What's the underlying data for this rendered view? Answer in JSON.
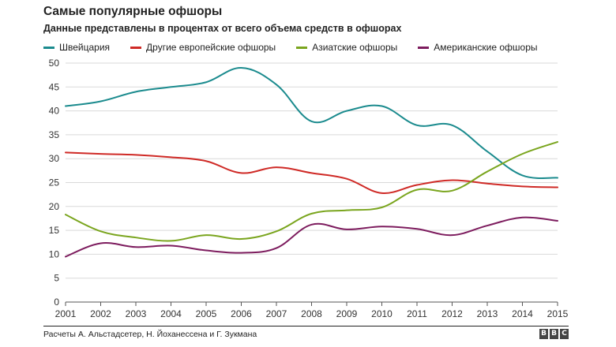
{
  "chart_data": {
    "type": "line",
    "title": "Самые популярные офшоры",
    "subtitle": "Данные представлены в процентах от всего объема средств в офшорах",
    "x": [
      2001,
      2002,
      2003,
      2004,
      2005,
      2006,
      2007,
      2008,
      2009,
      2010,
      2011,
      2012,
      2013,
      2014,
      2015
    ],
    "ylim": [
      0,
      50
    ],
    "yticks": [
      0,
      5,
      10,
      15,
      20,
      25,
      30,
      35,
      40,
      45,
      50
    ],
    "grid": "horizontal",
    "legend_position": "top-left",
    "series": [
      {
        "name": "Швейцария",
        "color": "#1b8b8e",
        "values": [
          41,
          42,
          44,
          45,
          46,
          49,
          45.5,
          37.8,
          40,
          41,
          37,
          37,
          31.5,
          26.5,
          26
        ]
      },
      {
        "name": "Другие европейские офшоры",
        "color": "#cf2a26",
        "values": [
          31.3,
          31,
          30.8,
          30.3,
          29.5,
          27,
          28.2,
          27,
          25.8,
          22.8,
          24.5,
          25.5,
          24.8,
          24.2,
          24
        ]
      },
      {
        "name": "Азиатские офшоры",
        "color": "#7aa51e",
        "values": [
          18.3,
          14.8,
          13.5,
          12.8,
          14,
          13.2,
          14.8,
          18.5,
          19.2,
          19.8,
          23.5,
          23.3,
          27.3,
          31,
          33.5
        ]
      },
      {
        "name": "Американские офшоры",
        "color": "#7d1c5e",
        "values": [
          9.5,
          12.3,
          11.5,
          11.8,
          10.8,
          10.3,
          11.3,
          16.2,
          15.2,
          15.8,
          15.3,
          14,
          16,
          17.7,
          17
        ]
      }
    ]
  },
  "footer": {
    "source": "Расчеты А. Альстадсетер, Н. Йоханессена и Г. Зукмана",
    "logo_letters": [
      "B",
      "B",
      "C"
    ]
  }
}
